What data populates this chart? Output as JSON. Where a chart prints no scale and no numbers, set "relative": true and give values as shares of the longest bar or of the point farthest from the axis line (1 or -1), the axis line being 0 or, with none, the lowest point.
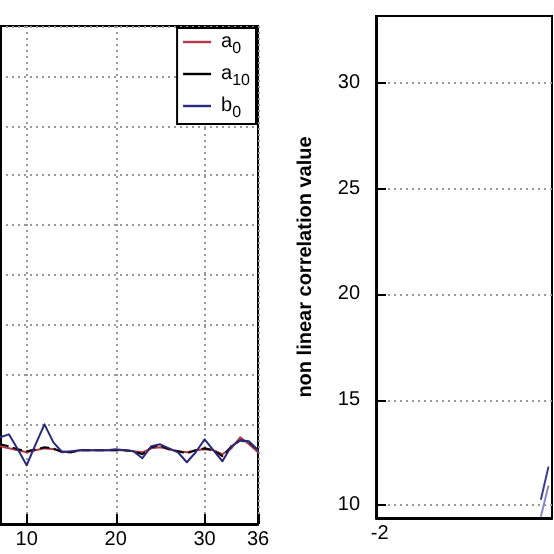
{
  "chart_data": [
    {
      "type": "line",
      "relative": true,
      "x": [
        7,
        8,
        9,
        10,
        11,
        12,
        13,
        14,
        15,
        16,
        17,
        18,
        19,
        20,
        21,
        22,
        23,
        24,
        25,
        26,
        27,
        28,
        29,
        30,
        31,
        32,
        33,
        34,
        35,
        36
      ],
      "xlim": [
        7,
        36
      ],
      "xticks": [
        10,
        20,
        30,
        36
      ],
      "tick_labels": "x",
      "grid": true,
      "legend": "top right",
      "series": [
        {
          "name": "a$_{0}$",
          "color": "#b03a48",
          "line_style": "solid",
          "values": [
            0.78,
            0.76,
            0.74,
            0.72,
            0.74,
            0.76,
            0.75,
            0.73,
            0.72,
            0.74,
            0.74,
            0.74,
            0.74,
            0.74,
            0.74,
            0.73,
            0.72,
            0.76,
            0.77,
            0.75,
            0.73,
            0.72,
            0.74,
            0.75,
            0.74,
            0.7,
            0.76,
            0.87,
            0.8,
            0.72
          ]
        },
        {
          "name": "a$_{10}$",
          "color": "#000000",
          "line_style": "dashed",
          "values": [
            0.8,
            0.78,
            0.75,
            0.73,
            0.75,
            0.77,
            0.76,
            0.72,
            0.72,
            0.74,
            0.74,
            0.74,
            0.74,
            0.74,
            0.74,
            0.73,
            0.7,
            0.77,
            0.79,
            0.75,
            0.73,
            0.71,
            0.74,
            0.76,
            0.74,
            0.68,
            0.78,
            0.84,
            0.82,
            0.74
          ]
        },
        {
          "name": "b$_{0}$",
          "color": "#2a2a7a",
          "line_style": "solid",
          "values": [
            0.87,
            0.9,
            0.75,
            0.59,
            0.8,
            1.0,
            0.82,
            0.72,
            0.73,
            0.74,
            0.74,
            0.74,
            0.74,
            0.75,
            0.74,
            0.73,
            0.66,
            0.78,
            0.8,
            0.76,
            0.72,
            0.62,
            0.72,
            0.85,
            0.74,
            0.63,
            0.78,
            0.84,
            0.83,
            0.74
          ]
        }
      ]
    },
    {
      "type": "line",
      "ylabel": "non linear correlation value",
      "categories": [
        "-2",
        null,
        null,
        null,
        null,
        null,
        null,
        null,
        null,
        null,
        null,
        null,
        null,
        null,
        null,
        null,
        null,
        null,
        null,
        null,
        null,
        null,
        null,
        null
      ],
      "ylim": [
        9.4,
        33.2
      ],
      "yticks": [
        10,
        15,
        20,
        25,
        30
      ],
      "grid": "y",
      "series": [
        {
          "color": "#3c3c8c",
          "values": [
            null,
            null,
            null,
            null,
            null,
            null,
            null,
            null,
            null,
            null,
            null,
            null,
            null,
            null,
            null,
            null,
            null,
            null,
            null,
            null,
            null,
            null,
            10.3,
            11.8
          ]
        },
        {
          "color": "#8a8ac8",
          "values": [
            null,
            null,
            null,
            null,
            null,
            null,
            null,
            null,
            null,
            null,
            null,
            null,
            null,
            null,
            null,
            null,
            null,
            null,
            null,
            null,
            null,
            null,
            9.5,
            10.9
          ]
        }
      ]
    }
  ]
}
